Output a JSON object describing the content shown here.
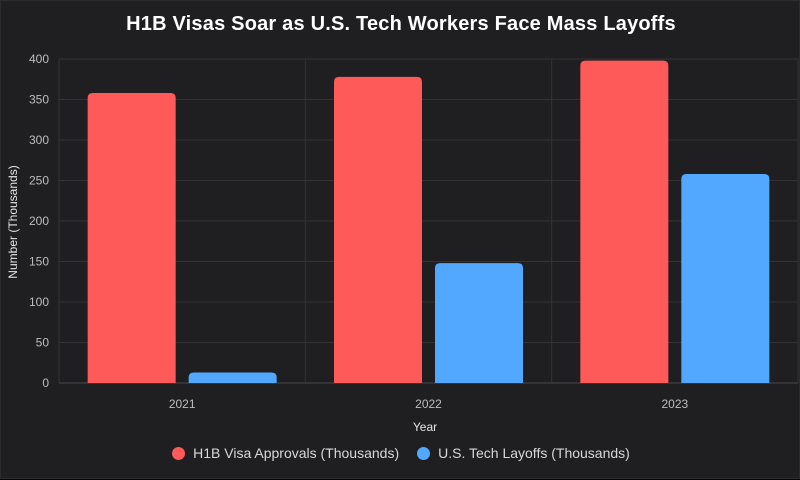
{
  "chart_data": {
    "type": "bar",
    "title": "H1B Visas Soar as U.S. Tech Workers Face Mass Layoffs",
    "xlabel": "Year",
    "ylabel": "Number (Thousands)",
    "categories": [
      "2021",
      "2022",
      "2023"
    ],
    "series": [
      {
        "name": "H1B Visa Approvals (Thousands)",
        "color": "#ff5a5a",
        "values": [
          358,
          378,
          398
        ]
      },
      {
        "name": "U.S. Tech Layoffs (Thousands)",
        "color": "#52a7ff",
        "values": [
          13,
          148,
          258
        ]
      }
    ],
    "ylim": [
      0,
      400
    ],
    "yticks": [
      0,
      50,
      100,
      150,
      200,
      250,
      300,
      350,
      400
    ],
    "grid": true,
    "legend_position": "bottom"
  }
}
